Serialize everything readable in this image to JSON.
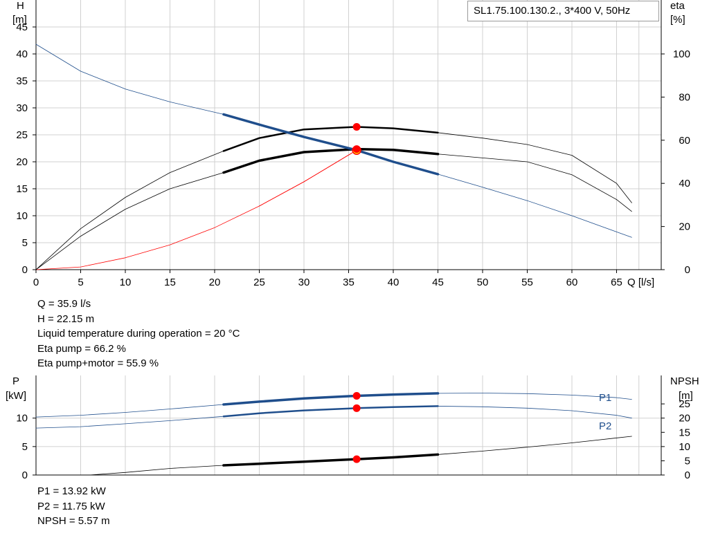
{
  "title": "SL1.75.100.130.2., 3*400 V, 50Hz",
  "colors": {
    "head_curve": "#1f4e8c",
    "efficiency_curve": "#000000",
    "system_curve": "#ff0000",
    "power_curve": "#1f4e8c",
    "npsh_curve": "#000000",
    "duty_point": "#ff0000",
    "duty_point_head": "#ffee00",
    "grid": "#d0d0d0"
  },
  "upper_chart": {
    "y_label_top": "H",
    "y_unit": "[m]",
    "y2_label": "eta",
    "y2_unit": "[%]",
    "x_label": "Q [l/s]"
  },
  "results_top": [
    "Q = 35.9 l/s",
    "H = 22.15 m",
    "Liquid temperature during operation = 20 °C",
    "Eta pump = 66.2 %",
    "Eta pump+motor = 55.9 %"
  ],
  "lower_chart": {
    "y_label_top": "P",
    "y_unit": "[kW]",
    "y2_label": "NPSH",
    "y2_unit": "[m]",
    "p1_label": "P1",
    "p2_label": "P2"
  },
  "results_bottom": [
    "P1 = 13.92 kW",
    "P2 = 11.75 kW",
    "NPSH = 5.57 m"
  ],
  "chart_data": [
    {
      "type": "line",
      "title": "SL1.75.100.130.2., 3*400 V, 50Hz",
      "xlabel": "Q [l/s]",
      "ylabel": "H [m]",
      "y2label": "eta [%]",
      "xlim": [
        0,
        70
      ],
      "ylim": [
        0,
        50
      ],
      "y2lim": [
        0,
        125
      ],
      "x_ticks": [
        0,
        5,
        10,
        15,
        20,
        25,
        30,
        35,
        40,
        45,
        50,
        55,
        60,
        65
      ],
      "y_ticks": [
        0,
        5,
        10,
        15,
        20,
        25,
        30,
        35,
        40,
        45
      ],
      "y2_ticks": [
        0,
        20,
        40,
        60,
        80,
        100
      ],
      "operating_range": [
        21,
        45
      ],
      "series": [
        {
          "axis": "left",
          "x": [
            0,
            5,
            10,
            15,
            21,
            25,
            30,
            35.9,
            40,
            45,
            50,
            55,
            60,
            65,
            66.7
          ],
          "values": [
            41.8,
            36.8,
            33.5,
            31.1,
            28.8,
            26.9,
            24.6,
            22.15,
            20.0,
            17.7,
            15.3,
            12.8,
            10.0,
            7.0,
            6.0
          ]
        },
        {
          "axis": "right",
          "x": [
            0,
            5,
            10,
            15,
            21,
            25,
            30,
            35.9,
            40,
            45,
            50,
            55,
            60,
            65,
            66.7
          ],
          "values": [
            0,
            15.5,
            28,
            37.5,
            45,
            50.5,
            54.5,
            55.9,
            55.5,
            53.6,
            51.8,
            50,
            44,
            32.5,
            27
          ]
        },
        {
          "axis": "right",
          "x": [
            0,
            5,
            10,
            15,
            21,
            25,
            30,
            35.9,
            40,
            45,
            50,
            55,
            60,
            65,
            66.7
          ],
          "values": [
            0,
            19,
            33.5,
            45,
            55,
            61,
            65,
            66.2,
            65.5,
            63.5,
            61,
            58,
            53,
            40,
            31
          ]
        },
        {
          "axis": "left",
          "x": [
            0,
            5,
            10,
            15,
            20,
            25,
            30,
            35.9
          ],
          "values": [
            0,
            0.5,
            2.2,
            4.6,
            7.8,
            11.8,
            16.3,
            22.15
          ]
        }
      ],
      "duty_points": [
        {
          "axis": "left",
          "x": 35.9,
          "y": 22.15
        },
        {
          "axis": "right",
          "x": 35.9,
          "y": 66.2
        },
        {
          "axis": "right",
          "x": 35.9,
          "y": 55.9
        }
      ]
    },
    {
      "type": "line",
      "xlabel": "Q [l/s]",
      "ylabel": "P [kW]",
      "y2label": "NPSH [m]",
      "xlim": [
        0,
        70
      ],
      "ylim": [
        0,
        17.5
      ],
      "y2lim": [
        0,
        35
      ],
      "y_ticks": [
        0,
        5,
        10
      ],
      "y2_ticks": [
        0,
        5,
        10,
        15,
        20,
        25
      ],
      "operating_range": [
        21,
        45
      ],
      "series": [
        {
          "name": "P1",
          "axis": "left",
          "x": [
            0,
            5,
            10,
            15,
            21,
            25,
            30,
            35.9,
            40,
            45,
            50,
            55,
            60,
            65,
            66.7
          ],
          "values": [
            10.2,
            10.5,
            11.0,
            11.6,
            12.4,
            12.9,
            13.45,
            13.92,
            14.15,
            14.35,
            14.4,
            14.3,
            14.05,
            13.6,
            13.3
          ]
        },
        {
          "name": "P2",
          "axis": "left",
          "x": [
            0,
            5,
            10,
            15,
            21,
            25,
            30,
            35.9,
            40,
            45,
            50,
            55,
            60,
            65,
            66.7
          ],
          "values": [
            8.25,
            8.5,
            9.0,
            9.55,
            10.3,
            10.85,
            11.35,
            11.75,
            11.95,
            12.1,
            12.0,
            11.75,
            11.3,
            10.5,
            10.0
          ]
        },
        {
          "axis": "right",
          "x": [
            6,
            10,
            15,
            21,
            25,
            30,
            35.9,
            40,
            45,
            50,
            55,
            60,
            66.7
          ],
          "values": [
            0,
            0.9,
            2.3,
            3.4,
            3.95,
            4.7,
            5.57,
            6.2,
            7.2,
            8.4,
            9.8,
            11.3,
            13.6
          ]
        }
      ],
      "duty_points": [
        {
          "axis": "left",
          "x": 35.9,
          "y": 13.92
        },
        {
          "axis": "left",
          "x": 35.9,
          "y": 11.75
        },
        {
          "axis": "right",
          "x": 35.9,
          "y": 5.57
        }
      ]
    }
  ]
}
